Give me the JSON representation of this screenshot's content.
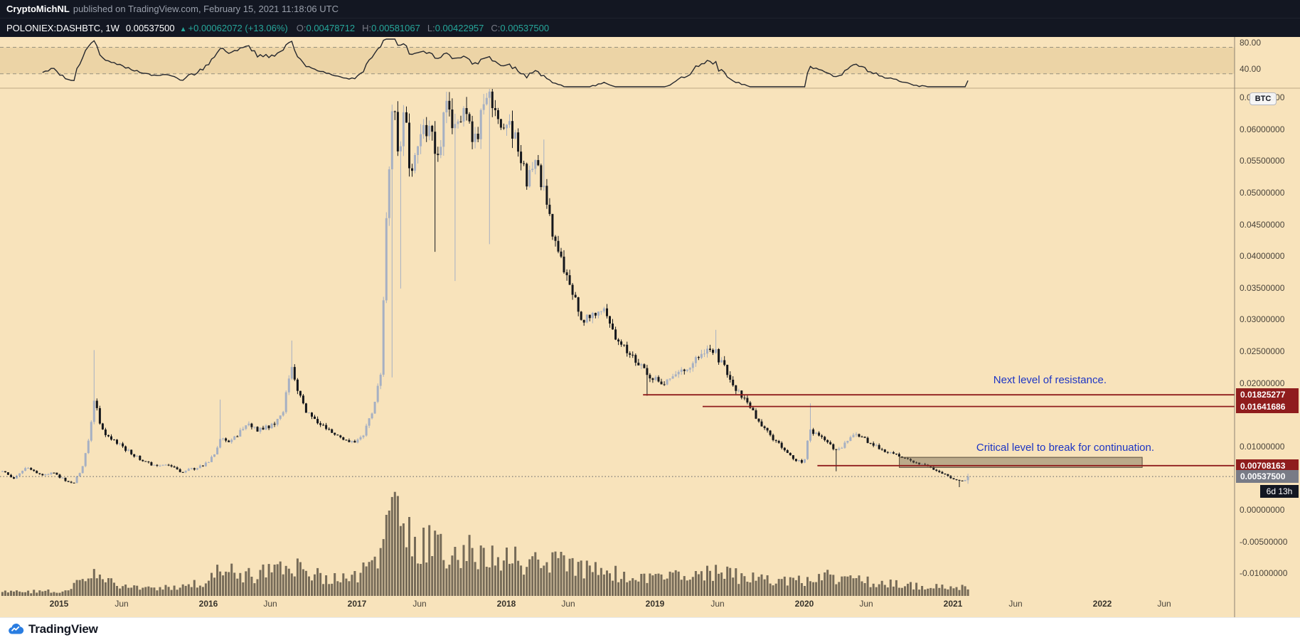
{
  "publish_bar": {
    "author": "CryptoMichNL",
    "suffix": "published on TradingView.com, February 15, 2021 11:18:06 UTC"
  },
  "symbol_bar": {
    "symbol": "POLONIEX:DASHBTC, 1W",
    "last": "0.00537500",
    "arrow": "▲",
    "change": "+0.00062072 (+13.06%)",
    "o_label": "O:",
    "o": "0.00478712",
    "h_label": "H:",
    "h": "0.00581067",
    "l_label": "L:",
    "l": "0.00422957",
    "c_label": "C:",
    "c": "0.00537500"
  },
  "footer": {
    "brand": "TradingView"
  },
  "colors": {
    "background": "#f8e3bb",
    "up_candle": "#a6b0c3",
    "down_candle": "#15171c",
    "volume": "rgba(62,56,46,0.7)",
    "level_red": "#8f1d1d",
    "annotation_blue": "#1d35c4",
    "accent_green": "#26a69a",
    "current_gray": "#787b86"
  },
  "chart_data": {
    "type": "candlestick",
    "symbol": "POLONIEX:DASHBTC",
    "interval": "1W",
    "ohlc_current": {
      "open": 0.00478712,
      "high": 0.00581067,
      "low": 0.00422957,
      "close": 0.005375
    },
    "current_price": {
      "v": 0.005375,
      "label": "0.00537500",
      "countdown": "6d 13h"
    },
    "price_axis": {
      "unit_label": "BTC",
      "ticks": [
        {
          "v": 0.065,
          "label": "0.06500000"
        },
        {
          "v": 0.06,
          "label": "0.06000000"
        },
        {
          "v": 0.055,
          "label": "0.05500000"
        },
        {
          "v": 0.05,
          "label": "0.05000000"
        },
        {
          "v": 0.045,
          "label": "0.04500000"
        },
        {
          "v": 0.04,
          "label": "0.04000000"
        },
        {
          "v": 0.035,
          "label": "0.03500000"
        },
        {
          "v": 0.03,
          "label": "0.03000000"
        },
        {
          "v": 0.025,
          "label": "0.02500000"
        },
        {
          "v": 0.02,
          "label": "0.02000000"
        },
        {
          "v": 0.01,
          "label": "0.01000000"
        },
        {
          "v": 0.0,
          "label": "0.00000000"
        },
        {
          "v": -0.005,
          "label": "-0.00500000"
        },
        {
          "v": -0.01,
          "label": "-0.01000000"
        }
      ]
    },
    "time_axis": [
      {
        "t": 2015.0,
        "label": "2015",
        "major": true
      },
      {
        "t": 2015.42,
        "label": "Jun",
        "major": false
      },
      {
        "t": 2016.0,
        "label": "2016",
        "major": true
      },
      {
        "t": 2016.42,
        "label": "Jun",
        "major": false
      },
      {
        "t": 2017.0,
        "label": "2017",
        "major": true
      },
      {
        "t": 2017.42,
        "label": "Jun",
        "major": false
      },
      {
        "t": 2018.0,
        "label": "2018",
        "major": true
      },
      {
        "t": 2018.42,
        "label": "Jun",
        "major": false
      },
      {
        "t": 2019.0,
        "label": "2019",
        "major": true
      },
      {
        "t": 2019.42,
        "label": "Jun",
        "major": false
      },
      {
        "t": 2020.0,
        "label": "2020",
        "major": true
      },
      {
        "t": 2020.42,
        "label": "Jun",
        "major": false
      },
      {
        "t": 2021.0,
        "label": "2021",
        "major": true
      },
      {
        "t": 2021.42,
        "label": "Jun",
        "major": false
      },
      {
        "t": 2022.0,
        "label": "2022",
        "major": true
      },
      {
        "t": 2022.42,
        "label": "Jun",
        "major": false
      }
    ],
    "levels": [
      {
        "v": 0.01825277,
        "label": "0.01825277",
        "start_t": 2018.92
      },
      {
        "v": 0.01641686,
        "label": "0.01641686",
        "start_t": 2019.32
      },
      {
        "v": 0.00708163,
        "label": "0.00708163",
        "start_t": 2020.09
      }
    ],
    "highlight_box": {
      "t_start": 2020.64,
      "t_end": 2022.27,
      "v_top": 0.0084,
      "v_bottom": 0.0068
    },
    "indicator": {
      "upper": 80,
      "lower": 40,
      "tick_labels": [
        "80.00",
        "40.00"
      ],
      "period": 14
    },
    "annotations": [
      {
        "text": "Next level of resistance.",
        "color": "#1d35c4"
      },
      {
        "text": "Critical level to break for continuation.",
        "color": "#1d35c4"
      }
    ],
    "close_keyframes": [
      [
        2014.62,
        0.0062
      ],
      [
        2014.7,
        0.005
      ],
      [
        2014.78,
        0.0068
      ],
      [
        2014.88,
        0.0056
      ],
      [
        2014.96,
        0.006
      ],
      [
        2015.04,
        0.0048
      ],
      [
        2015.1,
        0.0044
      ],
      [
        2015.16,
        0.007
      ],
      [
        2015.21,
        0.0125
      ],
      [
        2015.24,
        0.018
      ],
      [
        2015.27,
        0.014
      ],
      [
        2015.32,
        0.0118
      ],
      [
        2015.4,
        0.0105
      ],
      [
        2015.5,
        0.0088
      ],
      [
        2015.58,
        0.0077
      ],
      [
        2015.66,
        0.0069
      ],
      [
        2015.74,
        0.0073
      ],
      [
        2015.82,
        0.0061
      ],
      [
        2015.9,
        0.0066
      ],
      [
        2015.98,
        0.0072
      ],
      [
        2016.04,
        0.0088
      ],
      [
        2016.09,
        0.012
      ],
      [
        2016.13,
        0.0103
      ],
      [
        2016.2,
        0.0121
      ],
      [
        2016.28,
        0.0137
      ],
      [
        2016.34,
        0.0126
      ],
      [
        2016.42,
        0.0133
      ],
      [
        2016.5,
        0.0152
      ],
      [
        2016.56,
        0.023
      ],
      [
        2016.6,
        0.0193
      ],
      [
        2016.66,
        0.0155
      ],
      [
        2016.74,
        0.014
      ],
      [
        2016.82,
        0.0128
      ],
      [
        2016.9,
        0.0112
      ],
      [
        2016.98,
        0.0108
      ],
      [
        2017.04,
        0.0118
      ],
      [
        2017.1,
        0.0155
      ],
      [
        2017.16,
        0.022
      ],
      [
        2017.2,
        0.048
      ],
      [
        2017.24,
        0.0655
      ],
      [
        2017.28,
        0.056
      ],
      [
        2017.32,
        0.0625
      ],
      [
        2017.36,
        0.0525
      ],
      [
        2017.42,
        0.0585
      ],
      [
        2017.48,
        0.0615
      ],
      [
        2017.54,
        0.055
      ],
      [
        2017.6,
        0.064
      ],
      [
        2017.66,
        0.0595
      ],
      [
        2017.72,
        0.065
      ],
      [
        2017.78,
        0.0565
      ],
      [
        2017.84,
        0.0635
      ],
      [
        2017.9,
        0.066
      ],
      [
        2017.96,
        0.06
      ],
      [
        2018.02,
        0.0632
      ],
      [
        2018.08,
        0.0558
      ],
      [
        2018.14,
        0.052
      ],
      [
        2018.2,
        0.0562
      ],
      [
        2018.26,
        0.05
      ],
      [
        2018.32,
        0.043
      ],
      [
        2018.38,
        0.0388
      ],
      [
        2018.44,
        0.0345
      ],
      [
        2018.5,
        0.0308
      ],
      [
        2018.56,
        0.0298
      ],
      [
        2018.62,
        0.0322
      ],
      [
        2018.68,
        0.0305
      ],
      [
        2018.74,
        0.0268
      ],
      [
        2018.8,
        0.0254
      ],
      [
        2018.86,
        0.0238
      ],
      [
        2018.92,
        0.0222
      ],
      [
        2018.98,
        0.0208
      ],
      [
        2019.04,
        0.02
      ],
      [
        2019.1,
        0.0209
      ],
      [
        2019.16,
        0.0219
      ],
      [
        2019.24,
        0.0231
      ],
      [
        2019.32,
        0.0246
      ],
      [
        2019.4,
        0.0252
      ],
      [
        2019.46,
        0.0226
      ],
      [
        2019.52,
        0.0198
      ],
      [
        2019.58,
        0.0178
      ],
      [
        2019.64,
        0.0164
      ],
      [
        2019.7,
        0.0139
      ],
      [
        2019.76,
        0.0121
      ],
      [
        2019.82,
        0.0107
      ],
      [
        2019.88,
        0.0094
      ],
      [
        2019.94,
        0.0081
      ],
      [
        2020.0,
        0.0076
      ],
      [
        2020.04,
        0.0128
      ],
      [
        2020.1,
        0.0118
      ],
      [
        2020.16,
        0.0105
      ],
      [
        2020.22,
        0.0094
      ],
      [
        2020.28,
        0.0106
      ],
      [
        2020.34,
        0.0118
      ],
      [
        2020.4,
        0.0113
      ],
      [
        2020.46,
        0.0104
      ],
      [
        2020.52,
        0.0097
      ],
      [
        2020.58,
        0.0091
      ],
      [
        2020.64,
        0.0086
      ],
      [
        2020.7,
        0.0081
      ],
      [
        2020.76,
        0.0075
      ],
      [
        2020.82,
        0.007
      ],
      [
        2020.88,
        0.0064
      ],
      [
        2020.94,
        0.0057
      ],
      [
        2021.0,
        0.0051
      ],
      [
        2021.05,
        0.0046
      ],
      [
        2021.09,
        0.00479
      ],
      [
        2021.115,
        0.005375
      ]
    ],
    "wick_events": [
      {
        "t": 2015.24,
        "high": 0.0253
      },
      {
        "t": 2016.09,
        "high": 0.0175
      },
      {
        "t": 2016.56,
        "high": 0.0268
      },
      {
        "t": 2017.24,
        "low": 0.021
      },
      {
        "t": 2017.3,
        "low": 0.035
      },
      {
        "t": 2017.52,
        "low": 0.0408
      },
      {
        "t": 2017.66,
        "low": 0.0362
      },
      {
        "t": 2017.88,
        "low": 0.042
      },
      {
        "t": 2018.26,
        "high": 0.0585
      },
      {
        "t": 2018.95,
        "low": 0.0181
      },
      {
        "t": 2019.4,
        "high": 0.0285
      },
      {
        "t": 2019.7,
        "high": 0.0141
      },
      {
        "t": 2020.04,
        "high": 0.0169
      },
      {
        "t": 2020.22,
        "low": 0.0062
      },
      {
        "t": 2021.04,
        "low": 0.0037
      }
    ],
    "volume_keyframes": [
      [
        2014.62,
        4
      ],
      [
        2015.0,
        5
      ],
      [
        2015.2,
        18
      ],
      [
        2015.26,
        22
      ],
      [
        2015.4,
        10
      ],
      [
        2015.7,
        8
      ],
      [
        2016.0,
        15
      ],
      [
        2016.09,
        28
      ],
      [
        2016.3,
        20
      ],
      [
        2016.56,
        33
      ],
      [
        2016.8,
        18
      ],
      [
        2017.0,
        20
      ],
      [
        2017.16,
        45
      ],
      [
        2017.22,
        88
      ],
      [
        2017.26,
        100
      ],
      [
        2017.32,
        70
      ],
      [
        2017.4,
        48
      ],
      [
        2017.5,
        58
      ],
      [
        2017.62,
        42
      ],
      [
        2017.75,
        50
      ],
      [
        2017.9,
        38
      ],
      [
        2018.0,
        45
      ],
      [
        2018.15,
        33
      ],
      [
        2018.3,
        38
      ],
      [
        2018.5,
        28
      ],
      [
        2018.7,
        24
      ],
      [
        2018.9,
        19
      ],
      [
        2019.1,
        20
      ],
      [
        2019.4,
        25
      ],
      [
        2019.6,
        19
      ],
      [
        2019.8,
        15
      ],
      [
        2020.0,
        16
      ],
      [
        2020.05,
        23
      ],
      [
        2020.2,
        19
      ],
      [
        2020.4,
        15
      ],
      [
        2020.6,
        12
      ],
      [
        2020.8,
        10
      ],
      [
        2021.0,
        8
      ],
      [
        2021.115,
        11
      ]
    ]
  }
}
